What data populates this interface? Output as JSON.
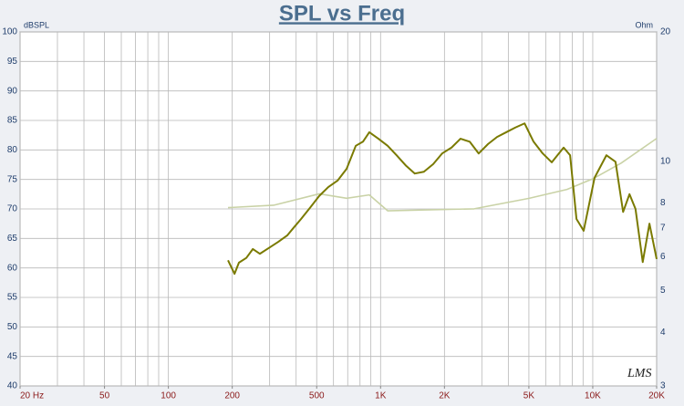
{
  "chart_data": {
    "type": "line",
    "title": "SPL vs Freq",
    "ylabel": "dBSPL",
    "y2label": "Ohm",
    "watermark": "LMS",
    "xscale": "log",
    "y2scale": "log",
    "grid": true,
    "xlim": [
      20,
      20000
    ],
    "ylim": [
      40,
      100
    ],
    "y2lim": [
      3,
      20
    ],
    "xticks": [
      {
        "value": 20,
        "label": "20 Hz"
      },
      50,
      100,
      200,
      500,
      {
        "value": 1000,
        "label": "1K"
      },
      {
        "value": 2000,
        "label": "2K"
      },
      {
        "value": 5000,
        "label": "5K"
      },
      {
        "value": 10000,
        "label": "10K"
      },
      {
        "value": 20000,
        "label": "20K"
      }
    ],
    "xgrid": [
      20,
      30,
      40,
      50,
      60,
      70,
      80,
      90,
      100,
      200,
      300,
      400,
      500,
      600,
      700,
      800,
      900,
      1000,
      2000,
      3000,
      4000,
      5000,
      6000,
      7000,
      8000,
      9000,
      10000,
      20000
    ],
    "yticks": [
      40,
      45,
      50,
      55,
      60,
      65,
      70,
      75,
      80,
      85,
      90,
      95,
      100
    ],
    "y2ticks": [
      3,
      4,
      5,
      6,
      7,
      8,
      10,
      20
    ],
    "series": [
      {
        "color": "#7a7a00",
        "axis": "y",
        "x": [
          191,
          205,
          215,
          233,
          250,
          270,
          298,
          329,
          363,
          389,
          422,
          465,
          514,
          567,
          627,
          692,
          764,
          826,
          885,
          977,
          1080,
          1190,
          1320,
          1450,
          1600,
          1770,
          1950,
          2160,
          2380,
          2630,
          2900,
          3210,
          3540,
          3910,
          4320,
          4770,
          5260,
          5810,
          6410,
          7290,
          7820,
          8380,
          9060,
          10200,
          11600,
          12800,
          13900,
          14900,
          15900,
          17200,
          18500,
          20000
        ],
        "values": [
          61.3,
          59,
          60.9,
          61.7,
          63.2,
          62.4,
          63.4,
          64.4,
          65.5,
          66.8,
          68.3,
          70.2,
          72.2,
          73.7,
          74.8,
          76.8,
          80.7,
          81.4,
          83.0,
          81.9,
          80.7,
          79.1,
          77.3,
          76.0,
          76.3,
          77.6,
          79.4,
          80.4,
          81.9,
          81.4,
          79.4,
          81.0,
          82.2,
          83.0,
          83.8,
          84.5,
          81.4,
          79.4,
          77.9,
          80.4,
          79.1,
          68.3,
          66.3,
          75.3,
          79.1,
          78,
          69.5,
          72.5,
          70,
          61,
          67.5,
          61.5
        ]
      },
      {
        "color": "#c9d2a6",
        "axis": "y2",
        "x": [
          191,
          313,
          514,
          692,
          885,
          1080,
          2760,
          5010,
          7560,
          10000,
          13600,
          20000
        ],
        "values": [
          7.8,
          7.9,
          8.4,
          8.2,
          8.35,
          7.67,
          7.75,
          8.2,
          8.6,
          9.1,
          9.9,
          11.3
        ]
      }
    ]
  }
}
